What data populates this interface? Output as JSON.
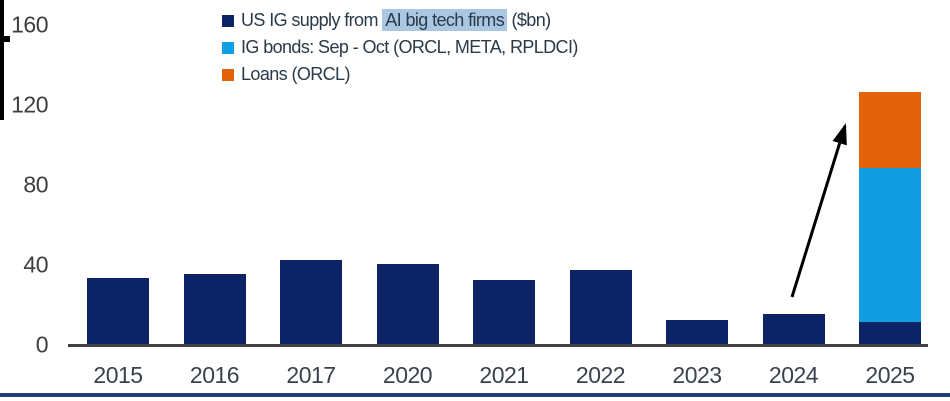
{
  "legend": {
    "highlight_color": "#a9c7e2",
    "items": [
      {
        "label_pre": "US IG supply from ",
        "label_highlight": "AI big tech firms",
        "label_post": " ($bn)",
        "color": "#0c2465"
      },
      {
        "label": "IG bonds: Sep - Oct (ORCL, META, RPLDCI)",
        "color": "#109de2"
      },
      {
        "label": "Loans (ORCL)",
        "color": "#e2630a"
      }
    ]
  },
  "chart_data": {
    "type": "bar",
    "stacked": true,
    "title": "",
    "xlabel": "",
    "ylabel": "",
    "categories": [
      "2015",
      "2016",
      "2017",
      "2020",
      "2021",
      "2022",
      "2023",
      "2024",
      "2025"
    ],
    "series": [
      {
        "name": "US IG supply from AI big tech firms ($bn)",
        "color": "#0c2465",
        "values": [
          34,
          36,
          43,
          41,
          33,
          38,
          13,
          16,
          12
        ]
      },
      {
        "name": "IG bonds: Sep - Oct (ORCL, META, RPLDCI)",
        "color": "#109de2",
        "values": [
          0,
          0,
          0,
          0,
          0,
          0,
          0,
          0,
          77
        ]
      },
      {
        "name": "Loans (ORCL)",
        "color": "#e2630a",
        "values": [
          0,
          0,
          0,
          0,
          0,
          0,
          0,
          0,
          38
        ]
      }
    ],
    "ylim": [
      0,
      160
    ],
    "yticks": [
      "0",
      "40",
      "80",
      "120",
      "160"
    ],
    "grid": false,
    "legend_position": "top-center",
    "annotations": [
      {
        "type": "arrow",
        "description": "black arrow pointing from above the 2024 bar up to the top of the 2025 stacked bar",
        "color": "#000000"
      }
    ],
    "highlighted_text": "AI big tech firms"
  },
  "colors": {
    "axis_line": "#404040",
    "axis_text": "#39424c",
    "bottom_rule": "#1f3f77"
  }
}
